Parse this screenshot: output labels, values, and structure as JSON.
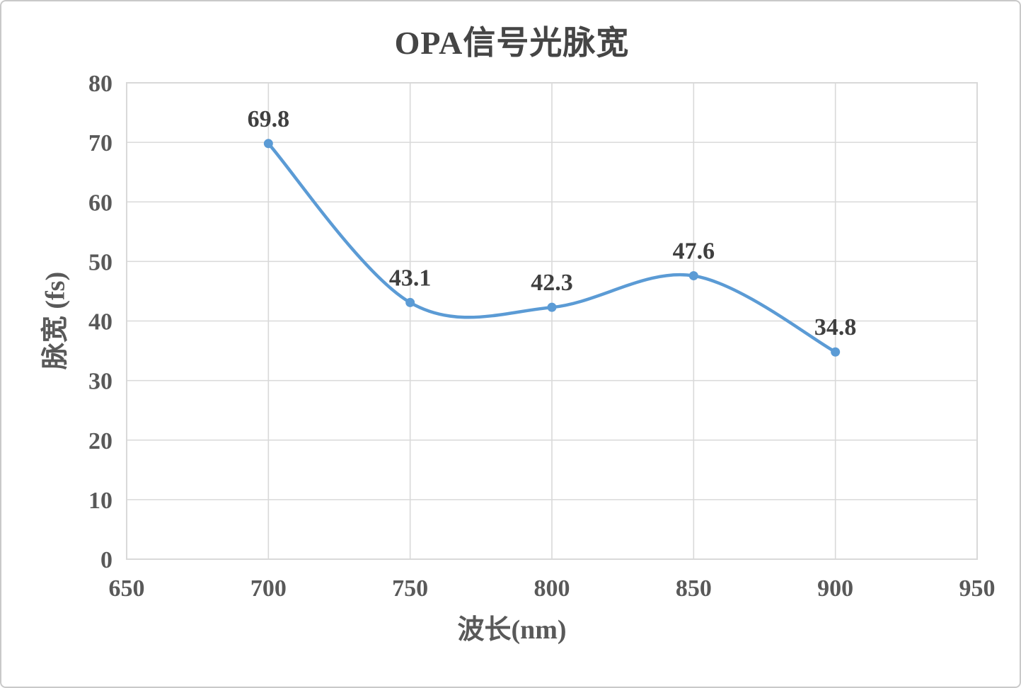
{
  "chart_data": {
    "type": "line",
    "title": "OPA信号光脉宽",
    "xlabel": "波长(nm)",
    "ylabel": "脉宽 (fs)",
    "x": [
      700,
      750,
      800,
      850,
      900
    ],
    "values": [
      69.8,
      43.1,
      42.3,
      47.6,
      34.8
    ],
    "point_labels": [
      "69.8",
      "43.1",
      "42.3",
      "47.6",
      "34.8"
    ],
    "xlim": [
      650,
      950
    ],
    "ylim": [
      0,
      80
    ],
    "x_ticks": [
      650,
      700,
      750,
      800,
      850,
      900,
      950
    ],
    "y_ticks": [
      0,
      10,
      20,
      30,
      40,
      50,
      60,
      70,
      80
    ],
    "grid": true,
    "smooth": true,
    "legend": "none",
    "colors": {
      "line": "#5B9BD5",
      "marker": "#5B9BD5",
      "grid": "#D9D9D9",
      "plot_border": "#D9D9D9",
      "tick_text": "#595959",
      "title_text": "#454545",
      "data_label_text": "#3F3F3F",
      "background": "#FFFFFF"
    }
  }
}
